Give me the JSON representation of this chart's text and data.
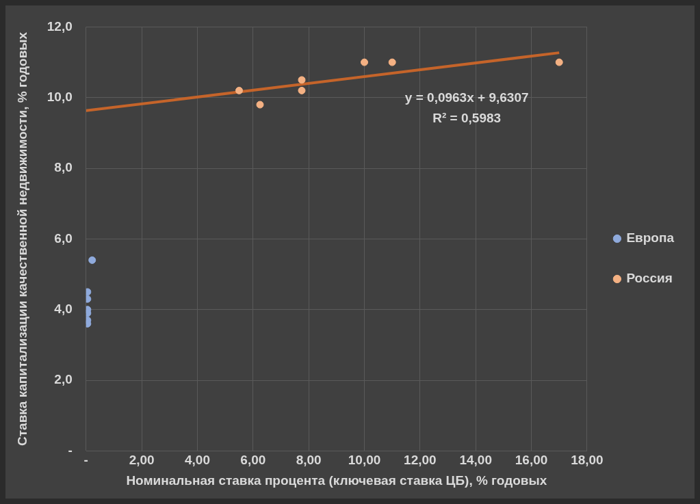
{
  "chart_data": {
    "type": "scatter",
    "xlabel": "Номинальная ставка процента (ключевая ставка ЦБ), % годовых",
    "ylabel": "Ставка капитализации качественной недвижимости, % годовых",
    "xlim": [
      0,
      18
    ],
    "xticks": [
      {
        "value": 0,
        "label": "-"
      },
      {
        "value": 2,
        "label": "2,00"
      },
      {
        "value": 4,
        "label": "4,00"
      },
      {
        "value": 6,
        "label": "6,00"
      },
      {
        "value": 8,
        "label": "8,00"
      },
      {
        "value": 10,
        "label": "10,00"
      },
      {
        "value": 12,
        "label": "12,00"
      },
      {
        "value": 14,
        "label": "14,00"
      },
      {
        "value": 16,
        "label": "16,00"
      },
      {
        "value": 18,
        "label": "18,00"
      }
    ],
    "ylim": [
      0,
      12
    ],
    "yticks": [
      {
        "value": 0,
        "label": "-"
      },
      {
        "value": 2,
        "label": "2,0"
      },
      {
        "value": 4,
        "label": "4,0"
      },
      {
        "value": 6,
        "label": "6,0"
      },
      {
        "value": 8,
        "label": "8,0"
      },
      {
        "value": 10,
        "label": "10,0"
      },
      {
        "value": 12,
        "label": "12,0"
      }
    ],
    "grid": true,
    "legend": "right",
    "marker": "circle",
    "series": [
      {
        "name": "Европа",
        "color": "#8faadc",
        "x": [
          0.05,
          0.05,
          0.05,
          0.05,
          0.05,
          0.05,
          0.22
        ],
        "values": [
          4.5,
          4.3,
          4.0,
          3.9,
          3.7,
          3.6,
          5.4
        ]
      },
      {
        "name": "Россия",
        "color": "#f4b183",
        "x": [
          5.5,
          6.25,
          7.75,
          7.75,
          10,
          11,
          17
        ],
        "values": [
          10.2,
          9.8,
          10.5,
          10.2,
          11,
          11,
          11
        ]
      },
      {
        "type": "line",
        "color": "#c5642a",
        "x": [
          0,
          17
        ],
        "values": [
          9.63,
          11.27
        ],
        "marker": "none"
      }
    ],
    "annotations": [
      "y = 0,0963x + 9,6307",
      "R² = 0,5983"
    ]
  }
}
